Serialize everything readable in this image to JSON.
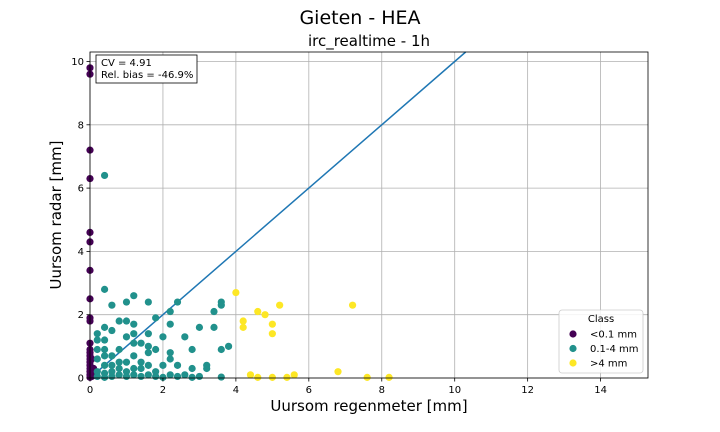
{
  "chart_data": {
    "type": "scatter",
    "suptitle": "Gieten - HEA",
    "title": "irc_realtime - 1h",
    "xlabel": "Uursom regenmeter [mm]",
    "ylabel": "Uursom radar [mm]",
    "xlim": [
      0,
      15.3
    ],
    "ylim": [
      0,
      10.3
    ],
    "xticks": [
      "0",
      "2",
      "4",
      "6",
      "8",
      "10",
      "12",
      "14"
    ],
    "yticks": [
      "0",
      "2",
      "4",
      "6",
      "8",
      "10"
    ],
    "grid": true,
    "stats": {
      "cv": "CV = 4.91",
      "bias": "Rel. bias = -46.9%"
    },
    "reference_line": {
      "type": "identity",
      "color": "#1f77b4"
    },
    "legend": {
      "title": "Class",
      "placement": "lower-right"
    },
    "series": [
      {
        "name": "<0.1 mm",
        "color": "#440154",
        "points": [
          [
            0,
            9.8
          ],
          [
            0,
            9.6
          ],
          [
            0,
            7.2
          ],
          [
            0,
            6.3
          ],
          [
            0,
            4.6
          ],
          [
            0,
            4.3
          ],
          [
            0,
            3.4
          ],
          [
            0,
            2.5
          ],
          [
            0,
            1.9
          ],
          [
            0,
            1.8
          ],
          [
            0,
            1.1
          ],
          [
            0,
            0.9
          ],
          [
            0,
            0.8
          ],
          [
            0,
            0.7
          ],
          [
            0,
            0.6
          ],
          [
            0,
            0.5
          ],
          [
            0,
            0.4
          ],
          [
            0,
            0.3
          ],
          [
            0,
            0.2
          ],
          [
            0,
            0.1
          ],
          [
            0.05,
            0.05
          ],
          [
            0.1,
            0.3
          ],
          [
            0.05,
            0.6
          ],
          [
            0.1,
            0.15
          ],
          [
            0,
            0.02
          ]
        ]
      },
      {
        "name": "0.1-4 mm",
        "color": "#21918c",
        "points": [
          [
            0.4,
            6.4
          ],
          [
            0.4,
            2.8
          ],
          [
            1.2,
            2.6
          ],
          [
            2.4,
            2.4
          ],
          [
            1.6,
            2.4
          ],
          [
            3.6,
            2.4
          ],
          [
            3.6,
            2.3
          ],
          [
            0.6,
            2.3
          ],
          [
            1.0,
            2.4
          ],
          [
            2.2,
            2.1
          ],
          [
            3.4,
            2.1
          ],
          [
            1.8,
            1.9
          ],
          [
            0.8,
            1.8
          ],
          [
            1.0,
            1.8
          ],
          [
            1.2,
            1.7
          ],
          [
            2.2,
            1.7
          ],
          [
            3.0,
            1.6
          ],
          [
            3.4,
            1.6
          ],
          [
            0.4,
            1.6
          ],
          [
            0.6,
            1.5
          ],
          [
            0.2,
            1.4
          ],
          [
            1.2,
            1.4
          ],
          [
            1.6,
            1.4
          ],
          [
            2.6,
            1.3
          ],
          [
            2.0,
            1.3
          ],
          [
            1.0,
            1.3
          ],
          [
            0.2,
            1.2
          ],
          [
            0.4,
            1.2
          ],
          [
            1.2,
            1.1
          ],
          [
            1.4,
            1.1
          ],
          [
            1.6,
            1.0
          ],
          [
            3.8,
            1.0
          ],
          [
            0.4,
            0.9
          ],
          [
            0.2,
            0.9
          ],
          [
            0.8,
            0.9
          ],
          [
            1.8,
            0.9
          ],
          [
            2.8,
            0.9
          ],
          [
            3.6,
            0.9
          ],
          [
            2.2,
            0.8
          ],
          [
            1.6,
            0.8
          ],
          [
            0.6,
            0.7
          ],
          [
            0.4,
            0.7
          ],
          [
            1.2,
            0.7
          ],
          [
            2.2,
            0.6
          ],
          [
            0.2,
            0.6
          ],
          [
            1.4,
            0.5
          ],
          [
            0.8,
            0.5
          ],
          [
            1.0,
            0.5
          ],
          [
            0.6,
            0.4
          ],
          [
            1.6,
            0.4
          ],
          [
            2.0,
            0.4
          ],
          [
            2.4,
            0.4
          ],
          [
            3.2,
            0.4
          ],
          [
            0.4,
            0.4
          ],
          [
            1.2,
            0.3
          ],
          [
            0.8,
            0.3
          ],
          [
            1.4,
            0.3
          ],
          [
            2.8,
            0.3
          ],
          [
            3.2,
            0.3
          ],
          [
            0.2,
            0.2
          ],
          [
            0.6,
            0.2
          ],
          [
            1.0,
            0.2
          ],
          [
            1.8,
            0.2
          ],
          [
            0.4,
            0.15
          ],
          [
            0.8,
            0.1
          ],
          [
            1.2,
            0.1
          ],
          [
            1.6,
            0.1
          ],
          [
            2.2,
            0.1
          ],
          [
            2.6,
            0.1
          ],
          [
            0.2,
            0.05
          ],
          [
            0.6,
            0.05
          ],
          [
            1.0,
            0.05
          ],
          [
            1.4,
            0.05
          ],
          [
            1.8,
            0.05
          ],
          [
            2.4,
            0.05
          ],
          [
            3.0,
            0.05
          ],
          [
            3.6,
            0.03
          ],
          [
            2.0,
            0.02
          ],
          [
            0.4,
            0.02
          ],
          [
            2.8,
            0.02
          ]
        ]
      },
      {
        "name": ">4 mm",
        "color": "#fde725",
        "points": [
          [
            4.0,
            2.7
          ],
          [
            5.2,
            2.3
          ],
          [
            7.2,
            2.3
          ],
          [
            4.6,
            2.1
          ],
          [
            4.8,
            2.0
          ],
          [
            4.2,
            1.8
          ],
          [
            4.2,
            1.6
          ],
          [
            5.0,
            1.7
          ],
          [
            5.0,
            1.4
          ],
          [
            6.8,
            0.2
          ],
          [
            4.4,
            0.1
          ],
          [
            5.6,
            0.1
          ],
          [
            4.6,
            0.02
          ],
          [
            5.0,
            0.02
          ],
          [
            5.4,
            0.02
          ],
          [
            7.6,
            0.02
          ],
          [
            8.2,
            0.02
          ]
        ]
      }
    ]
  }
}
